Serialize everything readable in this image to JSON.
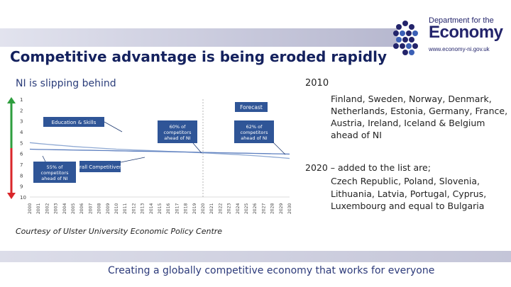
{
  "header": {
    "title": "Competitive advantage is being eroded rapidly",
    "logo": {
      "dept": "Department for the",
      "name": "Economy",
      "url": "www.economy-ni.gov.uk"
    }
  },
  "left": {
    "subhead": "NI is slipping behind",
    "courtesy": "Courtesy of Ulster University Economic Policy Centre"
  },
  "right": {
    "year": "2010",
    "list_2010": "Finland, Sweden, Norway, Denmark, Netherlands, Estonia, Germany, France, Austria, Ireland, Iceland & Belgium ahead of NI",
    "heading_2020": "2020 – added to the list are;",
    "list_2020": "Czech Republic, Poland, Slovenia, Lithuania, Latvia, Portugal, Cyprus, Luxembourg and equal to Bulgaria"
  },
  "footer": {
    "text": "Creating a globally competitive economy that works for everyone"
  },
  "colors": {
    "navy": "#14215e",
    "series": "#7f9ccb",
    "callout": "#2f5597",
    "green": "#2e9e3e",
    "red": "#d9262a"
  },
  "chart_data": {
    "type": "line",
    "title": "NI is slipping behind",
    "xlabel": "",
    "ylabel": "",
    "ylim": [
      1,
      10
    ],
    "y_inverted": true,
    "yticks": [
      "1",
      "2",
      "3",
      "4",
      "5",
      "6",
      "7",
      "8",
      "9",
      "10"
    ],
    "x": [
      "2000",
      "2001",
      "2002",
      "2003",
      "2004",
      "2005",
      "2006",
      "2007",
      "2008",
      "2009",
      "2010",
      "2011",
      "2012",
      "2013",
      "2014",
      "2015",
      "2016",
      "2017",
      "2018",
      "2019",
      "2020",
      "2021",
      "2022",
      "2023",
      "2024",
      "2025",
      "2026",
      "2027",
      "2028",
      "2029",
      "2030"
    ],
    "series": [
      {
        "name": "Education & Skills",
        "values": [
          5.0,
          5.08,
          5.15,
          5.22,
          5.28,
          5.35,
          5.4,
          5.45,
          5.5,
          5.55,
          5.6,
          5.63,
          5.67,
          5.7,
          5.73,
          5.76,
          5.8,
          5.83,
          5.86,
          5.9,
          5.94,
          5.98,
          6.02,
          6.06,
          6.1,
          6.15,
          6.2,
          6.26,
          6.32,
          6.38,
          6.45
        ]
      },
      {
        "name": "Overall Competitiveness",
        "values": [
          5.6,
          5.62,
          5.63,
          5.65,
          5.66,
          5.68,
          5.69,
          5.7,
          5.72,
          5.73,
          5.75,
          5.76,
          5.78,
          5.79,
          5.8,
          5.82,
          5.83,
          5.85,
          5.86,
          5.88,
          5.9,
          5.91,
          5.93,
          5.94,
          5.96,
          5.97,
          5.99,
          6.0,
          6.02,
          6.03,
          6.05
        ]
      }
    ],
    "annotations": [
      {
        "label": "Forecast"
      },
      {
        "label": "60% of competitors ahead of NI"
      },
      {
        "label": "62% of competitors ahead of NI"
      },
      {
        "label": "55% of competitors ahead of NI"
      }
    ],
    "legend": "callouts"
  }
}
